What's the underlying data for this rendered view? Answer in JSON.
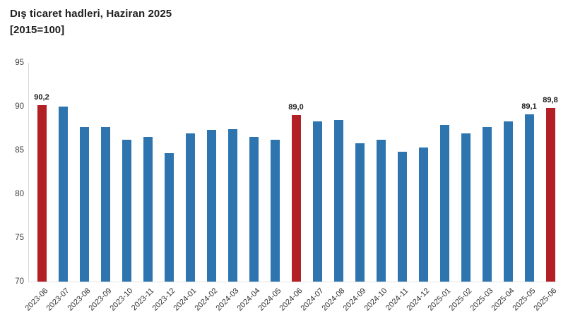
{
  "title": "Dış ticaret hadleri, Haziran 2025",
  "subtitle": "[2015=100]",
  "chart_data": {
    "type": "bar",
    "title": "Dış ticaret hadleri, Haziran 2025",
    "subtitle": "[2015=100]",
    "categories": [
      "2023-06",
      "2023-07",
      "2023-08",
      "2023-09",
      "2023-10",
      "2023-11",
      "2023-12",
      "2024-01",
      "2024-02",
      "2024-03",
      "2024-04",
      "2024-05",
      "2024-06",
      "2024-07",
      "2024-08",
      "2024-09",
      "2024-10",
      "2024-11",
      "2024-12",
      "2025-01",
      "2025-02",
      "2025-03",
      "2025-04",
      "2025-05",
      "2025-06"
    ],
    "values": [
      90.2,
      90.0,
      87.7,
      87.7,
      86.2,
      86.5,
      84.7,
      86.9,
      87.3,
      87.4,
      86.5,
      86.2,
      89.0,
      88.3,
      88.5,
      85.8,
      86.2,
      84.8,
      85.3,
      87.9,
      86.9,
      87.7,
      88.3,
      89.1,
      89.8
    ],
    "ylim": [
      70,
      95
    ],
    "yticks": [
      70,
      75,
      80,
      85,
      90,
      95
    ],
    "xlabel": "",
    "ylabel": "",
    "grid": false,
    "legend": "none",
    "highlight_indices": [
      0,
      12,
      24
    ],
    "point_labels": [
      {
        "index": 0,
        "text": "90,2"
      },
      {
        "index": 12,
        "text": "89,0"
      },
      {
        "index": 23,
        "text": "89,1"
      },
      {
        "index": 24,
        "text": "89,8"
      }
    ],
    "colors": {
      "bar_default": "#2e75b0",
      "bar_highlight": "#b22025",
      "axis_line": "#d9d9d9",
      "tick_text": "#3f3f3f",
      "title_text": "#1f1f1f",
      "value_label_text": "#1a1a1a"
    }
  }
}
